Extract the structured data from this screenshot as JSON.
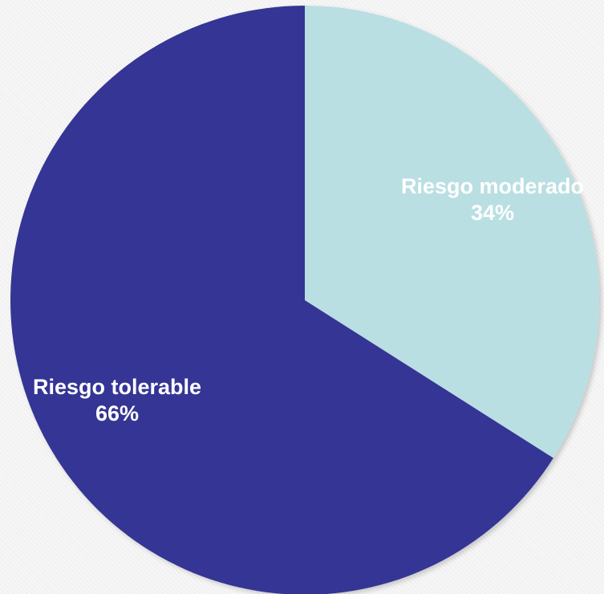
{
  "chart_data": {
    "type": "pie",
    "slices": [
      {
        "label": "Riesgo moderado",
        "value": 34,
        "value_text": "34%",
        "color": "#b9dfe2"
      },
      {
        "label": "Riesgo tolerable",
        "value": 66,
        "value_text": "66%",
        "color": "#353595"
      }
    ],
    "start_angle": "12 o'clock",
    "direction": "clockwise",
    "legend": "none",
    "data_labels": "inside slices, white bold text"
  }
}
